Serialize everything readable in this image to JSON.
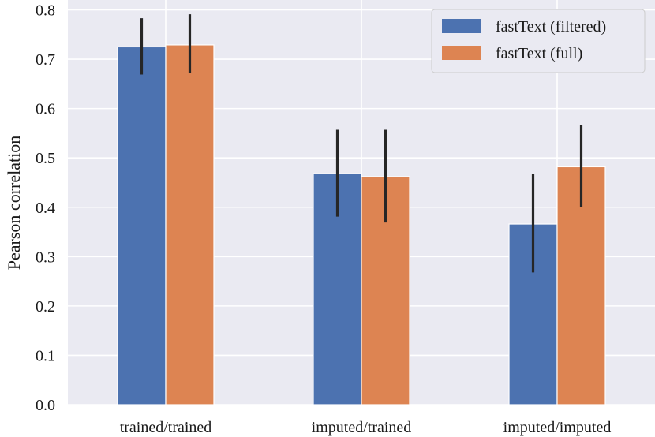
{
  "chart_data": {
    "type": "bar",
    "categories": [
      "trained/trained",
      "imputed/trained",
      "imputed/imputed"
    ],
    "series": [
      {
        "name": "fastText (filtered)",
        "color": "#4c72b0",
        "values": [
          0.725,
          0.468,
          0.366
        ],
        "error_low": [
          0.669,
          0.381,
          0.268
        ],
        "error_high": [
          0.783,
          0.557,
          0.468
        ]
      },
      {
        "name": "fastText (full)",
        "color": "#dd8452",
        "values": [
          0.729,
          0.462,
          0.482
        ],
        "error_low": [
          0.672,
          0.369,
          0.401
        ],
        "error_high": [
          0.791,
          0.557,
          0.566
        ]
      }
    ],
    "xlabel": "",
    "ylabel": "Pearson correlation",
    "ylim": [
      0,
      0.82
    ],
    "yticks": [
      "0.0",
      "0.1",
      "0.2",
      "0.3",
      "0.4",
      "0.5",
      "0.6",
      "0.7",
      "0.8"
    ],
    "grid": true,
    "legend": "top-right",
    "background": "#eaeaf2"
  }
}
